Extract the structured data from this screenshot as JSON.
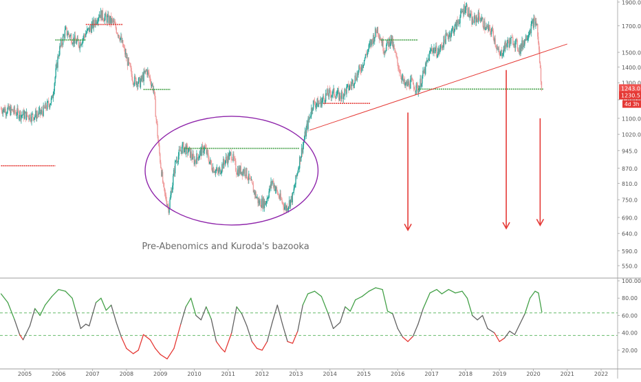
{
  "chart_data": [
    {
      "type": "candlestick",
      "title": "",
      "annotation": "Pre-Abenomics and Kuroda's bazooka",
      "x_ticks": [
        "2005",
        "2006",
        "2007",
        "2008",
        "2009",
        "2010",
        "2011",
        "2012",
        "2013",
        "2014",
        "2015",
        "2016",
        "2017",
        "2018",
        "2019",
        "2020",
        "2021",
        "2022"
      ],
      "x_tick_years": [
        2005,
        2006,
        2007,
        2008,
        2009,
        2010,
        2011,
        2012,
        2013,
        2014,
        2015,
        2016,
        2017,
        2018,
        2019,
        2020,
        2021,
        2022
      ],
      "y_ticks": [
        1900.0,
        1700.0,
        1500.0,
        1400.0,
        1300.0,
        1200.0,
        1100.0,
        1020.0,
        945.0,
        870.0,
        810.0,
        750.0,
        690.0,
        640.0,
        590.0,
        550.0
      ],
      "y_tick_labels": [
        "1900.0",
        "1700.0",
        "1500.0",
        "1400.0",
        "1300.0",
        "1200.0",
        "1100.0",
        "1020.0",
        "945.0",
        "870.0",
        "810.0",
        "750.0",
        "690.0",
        "640.0",
        "590.0",
        "550.0"
      ],
      "y_scale": "log",
      "price_path": [
        [
          2004.3,
          1150
        ],
        [
          2004.6,
          1140
        ],
        [
          2004.9,
          1120
        ],
        [
          2005.2,
          1110
        ],
        [
          2005.5,
          1130
        ],
        [
          2005.8,
          1200
        ],
        [
          2006.0,
          1500
        ],
        [
          2006.2,
          1660
        ],
        [
          2006.4,
          1600
        ],
        [
          2006.6,
          1560
        ],
        [
          2006.8,
          1640
        ],
        [
          2007.0,
          1700
        ],
        [
          2007.2,
          1800
        ],
        [
          2007.4,
          1760
        ],
        [
          2007.6,
          1730
        ],
        [
          2007.8,
          1620
        ],
        [
          2008.0,
          1460
        ],
        [
          2008.2,
          1320
        ],
        [
          2008.4,
          1300
        ],
        [
          2008.6,
          1380
        ],
        [
          2008.8,
          1260
        ],
        [
          2008.95,
          960
        ],
        [
          2009.1,
          780
        ],
        [
          2009.25,
          720
        ],
        [
          2009.45,
          900
        ],
        [
          2009.65,
          960
        ],
        [
          2009.85,
          940
        ],
        [
          2010.0,
          900
        ],
        [
          2010.3,
          960
        ],
        [
          2010.5,
          880
        ],
        [
          2010.7,
          850
        ],
        [
          2010.9,
          900
        ],
        [
          2011.1,
          930
        ],
        [
          2011.25,
          860
        ],
        [
          2011.5,
          860
        ],
        [
          2011.7,
          800
        ],
        [
          2011.9,
          740
        ],
        [
          2012.1,
          740
        ],
        [
          2012.3,
          820
        ],
        [
          2012.5,
          760
        ],
        [
          2012.7,
          720
        ],
        [
          2012.9,
          760
        ],
        [
          2013.1,
          900
        ],
        [
          2013.3,
          1040
        ],
        [
          2013.5,
          1180
        ],
        [
          2013.7,
          1180
        ],
        [
          2013.9,
          1230
        ],
        [
          2014.1,
          1240
        ],
        [
          2014.3,
          1220
        ],
        [
          2014.6,
          1280
        ],
        [
          2014.9,
          1390
        ],
        [
          2015.2,
          1560
        ],
        [
          2015.4,
          1680
        ],
        [
          2015.6,
          1520
        ],
        [
          2015.8,
          1600
        ],
        [
          2016.0,
          1420
        ],
        [
          2016.2,
          1280
        ],
        [
          2016.4,
          1300
        ],
        [
          2016.6,
          1260
        ],
        [
          2016.8,
          1380
        ],
        [
          2017.0,
          1530
        ],
        [
          2017.2,
          1500
        ],
        [
          2017.4,
          1600
        ],
        [
          2017.7,
          1690
        ],
        [
          2018.0,
          1870
        ],
        [
          2018.2,
          1730
        ],
        [
          2018.4,
          1780
        ],
        [
          2018.6,
          1680
        ],
        [
          2018.8,
          1650
        ],
        [
          2019.0,
          1470
        ],
        [
          2019.2,
          1560
        ],
        [
          2019.4,
          1590
        ],
        [
          2019.6,
          1520
        ],
        [
          2019.8,
          1620
        ],
        [
          2020.0,
          1730
        ],
        [
          2020.1,
          1720
        ],
        [
          2020.18,
          1460
        ],
        [
          2020.25,
          1230
        ]
      ],
      "current_price": "1243.0",
      "secondary_price": "1230.5",
      "time_badge": "4d 3h",
      "horizontal_levels": [
        {
          "x1": 2004.3,
          "x2": 2005.9,
          "y": 880,
          "color": "#e53935"
        },
        {
          "x1": 2005.9,
          "x2": 2006.8,
          "y": 1590,
          "color": "#43a047"
        },
        {
          "x1": 2006.8,
          "x2": 2007.9,
          "y": 1710,
          "color": "#e53935"
        },
        {
          "x1": 2008.5,
          "x2": 2009.3,
          "y": 1260,
          "color": "#43a047"
        },
        {
          "x1": 2009.7,
          "x2": 2013.1,
          "y": 955,
          "color": "#43a047"
        },
        {
          "x1": 2013.8,
          "x2": 2015.2,
          "y": 1180,
          "color": "#e53935"
        },
        {
          "x1": 2015.5,
          "x2": 2016.6,
          "y": 1590,
          "color": "#43a047"
        },
        {
          "x1": 2016.6,
          "x2": 2020.3,
          "y": 1262,
          "color": "#43a047"
        }
      ],
      "trendline": {
        "x1": 2013.4,
        "y1": 1040,
        "x2": 2021.0,
        "y2": 1560,
        "color": "#e53935"
      },
      "ellipse": {
        "cx": 2011.1,
        "cy": 860,
        "rx_years": 2.55,
        "color": "#8e24aa"
      },
      "arrows": [
        {
          "x": 2016.3,
          "y_from": 1130,
          "y_to": 650
        },
        {
          "x": 2019.2,
          "y_from": 1380,
          "y_to": 655
        },
        {
          "x": 2020.2,
          "y_from": 1100,
          "y_to": 665
        }
      ],
      "colors": {
        "up": "#26a69a",
        "down": "#ef9a9a"
      }
    },
    {
      "type": "line",
      "indicator": "oscillator",
      "y_ticks": [
        100.0,
        80.0,
        60.0,
        40.0,
        20.0
      ],
      "y_tick_labels": [
        "100.00",
        "80.00",
        "60.00",
        "40.00",
        "20.00"
      ],
      "ylim": [
        0,
        100
      ],
      "upper_band": 63,
      "lower_band": 37,
      "series_path": [
        [
          2004.3,
          85
        ],
        [
          2004.5,
          75
        ],
        [
          2004.7,
          55
        ],
        [
          2004.85,
          38
        ],
        [
          2004.95,
          32
        ],
        [
          2005.15,
          48
        ],
        [
          2005.3,
          68
        ],
        [
          2005.45,
          60
        ],
        [
          2005.6,
          72
        ],
        [
          2005.8,
          82
        ],
        [
          2006.0,
          90
        ],
        [
          2006.2,
          88
        ],
        [
          2006.4,
          80
        ],
        [
          2006.5,
          66
        ],
        [
          2006.65,
          45
        ],
        [
          2006.8,
          50
        ],
        [
          2006.9,
          48
        ],
        [
          2007.1,
          75
        ],
        [
          2007.25,
          80
        ],
        [
          2007.4,
          66
        ],
        [
          2007.55,
          72
        ],
        [
          2007.7,
          52
        ],
        [
          2007.85,
          35
        ],
        [
          2008.0,
          22
        ],
        [
          2008.2,
          16
        ],
        [
          2008.35,
          20
        ],
        [
          2008.5,
          38
        ],
        [
          2008.7,
          32
        ],
        [
          2008.85,
          22
        ],
        [
          2009.0,
          15
        ],
        [
          2009.2,
          10
        ],
        [
          2009.4,
          22
        ],
        [
          2009.6,
          50
        ],
        [
          2009.75,
          70
        ],
        [
          2009.9,
          80
        ],
        [
          2010.05,
          60
        ],
        [
          2010.2,
          55
        ],
        [
          2010.35,
          70
        ],
        [
          2010.5,
          56
        ],
        [
          2010.65,
          30
        ],
        [
          2010.8,
          22
        ],
        [
          2010.9,
          18
        ],
        [
          2011.1,
          40
        ],
        [
          2011.25,
          70
        ],
        [
          2011.4,
          62
        ],
        [
          2011.55,
          48
        ],
        [
          2011.7,
          30
        ],
        [
          2011.85,
          22
        ],
        [
          2012.0,
          20
        ],
        [
          2012.15,
          30
        ],
        [
          2012.3,
          52
        ],
        [
          2012.45,
          72
        ],
        [
          2012.6,
          50
        ],
        [
          2012.75,
          30
        ],
        [
          2012.9,
          28
        ],
        [
          2013.05,
          42
        ],
        [
          2013.2,
          72
        ],
        [
          2013.35,
          85
        ],
        [
          2013.55,
          88
        ],
        [
          2013.75,
          82
        ],
        [
          2013.95,
          62
        ],
        [
          2014.1,
          45
        ],
        [
          2014.3,
          52
        ],
        [
          2014.45,
          70
        ],
        [
          2014.6,
          65
        ],
        [
          2014.75,
          78
        ],
        [
          2014.95,
          82
        ],
        [
          2015.15,
          88
        ],
        [
          2015.35,
          92
        ],
        [
          2015.55,
          90
        ],
        [
          2015.7,
          65
        ],
        [
          2015.85,
          62
        ],
        [
          2016.0,
          45
        ],
        [
          2016.15,
          35
        ],
        [
          2016.3,
          30
        ],
        [
          2016.45,
          36
        ],
        [
          2016.6,
          50
        ],
        [
          2016.75,
          68
        ],
        [
          2016.95,
          86
        ],
        [
          2017.15,
          90
        ],
        [
          2017.3,
          85
        ],
        [
          2017.5,
          90
        ],
        [
          2017.7,
          86
        ],
        [
          2017.9,
          88
        ],
        [
          2018.05,
          80
        ],
        [
          2018.2,
          60
        ],
        [
          2018.35,
          55
        ],
        [
          2018.5,
          60
        ],
        [
          2018.65,
          45
        ],
        [
          2018.85,
          40
        ],
        [
          2019.0,
          30
        ],
        [
          2019.15,
          34
        ],
        [
          2019.3,
          42
        ],
        [
          2019.45,
          38
        ],
        [
          2019.6,
          50
        ],
        [
          2019.75,
          62
        ],
        [
          2019.9,
          80
        ],
        [
          2020.05,
          88
        ],
        [
          2020.15,
          86
        ],
        [
          2020.25,
          64
        ]
      ],
      "colors": {
        "high": "#43a047",
        "low": "#e53935",
        "mid": "#616161"
      }
    }
  ]
}
